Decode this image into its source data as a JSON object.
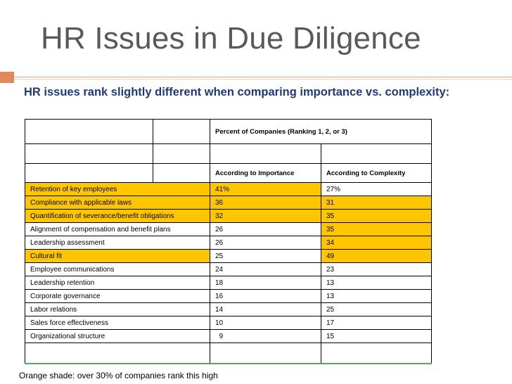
{
  "slide": {
    "title": "HR Issues in Due Diligence",
    "subtitle": "HR issues rank slightly different when comparing importance vs. complexity:",
    "footnote": "Orange shade: over 30% of companies rank this high"
  },
  "table": {
    "group_header": "Percent of Companies (Ranking 1, 2, or 3)",
    "col_importance": "According to Importance",
    "col_complexity": "According to Complexity",
    "rows": [
      {
        "label": "Retention of key employees",
        "importance": "41%",
        "complexity": "27%",
        "label_orange": true,
        "importance_orange": true,
        "complexity_orange": false
      },
      {
        "label": "Compliance with applicable laws",
        "importance": "36",
        "complexity": "31",
        "label_orange": true,
        "importance_orange": true,
        "complexity_orange": true
      },
      {
        "label": "Quantification of severance/benefit obligations",
        "importance": "32",
        "complexity": "35",
        "label_orange": true,
        "importance_orange": true,
        "complexity_orange": true
      },
      {
        "label": "Alignment of compensation and benefit plans",
        "importance": "26",
        "complexity": "35",
        "label_orange": false,
        "importance_orange": false,
        "complexity_orange": true
      },
      {
        "label": "Leadership assessment",
        "importance": "26",
        "complexity": "34",
        "label_orange": false,
        "importance_orange": false,
        "complexity_orange": true
      },
      {
        "label": "Cultural fit",
        "importance": "25",
        "complexity": "49",
        "label_orange": true,
        "importance_orange": false,
        "complexity_orange": true
      },
      {
        "label": "Employee communications",
        "importance": "24",
        "complexity": "23",
        "label_orange": false,
        "importance_orange": false,
        "complexity_orange": false
      },
      {
        "label": "Leadership retention",
        "importance": "18",
        "complexity": "13",
        "label_orange": false,
        "importance_orange": false,
        "complexity_orange": false
      },
      {
        "label": "Corporate governance",
        "importance": "16",
        "complexity": "13",
        "label_orange": false,
        "importance_orange": false,
        "complexity_orange": false
      },
      {
        "label": "Labor relations",
        "importance": "14",
        "complexity": "25",
        "label_orange": false,
        "importance_orange": false,
        "complexity_orange": false
      },
      {
        "label": "Sales force effectiveness",
        "importance": "10",
        "complexity": "17",
        "label_orange": false,
        "importance_orange": false,
        "complexity_orange": false
      },
      {
        "label": "Organizational structure",
        "importance": "  9",
        "complexity": "15",
        "label_orange": false,
        "importance_orange": false,
        "complexity_orange": false
      }
    ]
  },
  "colors": {
    "title": "#595959",
    "subtitle": "#1f3a78",
    "highlight": "#ffc600",
    "accent": "#e0895b"
  }
}
